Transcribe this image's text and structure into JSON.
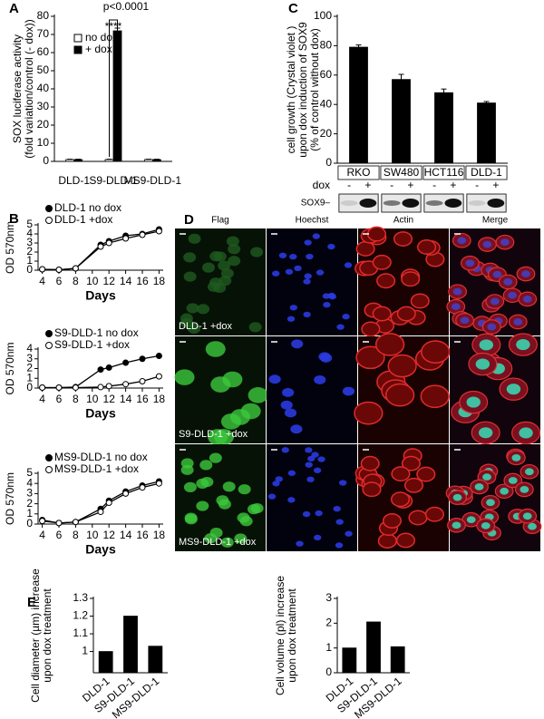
{
  "chart_data": [
    {
      "panel": "A",
      "type": "bar",
      "ylabel": [
        "SOX luciferase activity",
        "(fold variation/control (- dox))"
      ],
      "categories": [
        "DLD-1",
        "S9-DLD-1",
        "MS9-DLD-1"
      ],
      "series": [
        {
          "name": "no dox",
          "color": "#ffffff",
          "values": [
            1,
            1,
            1
          ],
          "errors": [
            0.2,
            0.2,
            0.2
          ]
        },
        {
          "name": "+ dox",
          "color": "#000000",
          "values": [
            1,
            72,
            1
          ],
          "errors": [
            0.2,
            1.5,
            0.2
          ]
        }
      ],
      "ylim": [
        0,
        80
      ],
      "yticks": [
        0,
        10,
        20,
        30,
        40,
        50,
        60,
        70,
        80
      ],
      "legend": "upper left",
      "annotations": [
        "p<0.0001",
        "****"
      ]
    },
    {
      "panel": "C",
      "type": "bar",
      "ylabel": [
        "cell growth (Crystal violet )",
        "upon dox induction of SOX9",
        "(% of control without dox)"
      ],
      "categories": [
        "RKO",
        "SW480",
        "HCT116",
        "DLD-1"
      ],
      "values": [
        79,
        57,
        48,
        41
      ],
      "errors": [
        1.5,
        3.5,
        2.5,
        1
      ],
      "color": "#000000",
      "ylim": [
        0,
        100
      ],
      "yticks": [
        0,
        20,
        40,
        60,
        80,
        100
      ]
    },
    {
      "panel": "B",
      "type": "line",
      "ylabel": [
        "OD 570nm"
      ],
      "xlabel": "Days",
      "x": [
        4,
        6,
        8,
        11,
        12,
        14,
        16,
        18
      ],
      "xlim": [
        3.5,
        18.5
      ],
      "xticks": [
        4,
        6,
        8,
        10,
        12,
        14,
        16,
        18
      ],
      "ylim": [
        0,
        5
      ],
      "yticks": [
        0,
        1,
        2,
        3,
        4,
        5
      ],
      "legend": "upper left",
      "series": [
        {
          "name": "DLD-1 no dox",
          "color": "#000000",
          "marker": "filled",
          "values": [
            0.1,
            0.05,
            0.2,
            2.8,
            3.2,
            3.8,
            4.0,
            4.5
          ]
        },
        {
          "name": "DLD-1 +dox",
          "color": "#000000",
          "marker": "open",
          "values": [
            0.1,
            0.05,
            0.2,
            2.6,
            3.0,
            3.5,
            3.9,
            4.3
          ]
        }
      ]
    },
    {
      "type": "line",
      "ylabel": [
        "OD 570nm"
      ],
      "xlabel": "Days",
      "x": [
        4,
        6,
        8,
        11,
        12,
        14,
        16,
        18
      ],
      "xlim": [
        3.5,
        18.5
      ],
      "xticks": [
        4,
        6,
        8,
        10,
        12,
        14,
        16,
        18
      ],
      "ylim": [
        0,
        4
      ],
      "yticks": [
        0,
        1,
        2,
        3,
        4
      ],
      "legend": "upper left",
      "series": [
        {
          "name": "S9-DLD-1 no dox",
          "color": "#000000",
          "marker": "filled",
          "values": [
            0.05,
            0.05,
            0.1,
            1.9,
            2.1,
            2.6,
            3.0,
            3.3
          ]
        },
        {
          "name": "S9-DLD-1 +dox",
          "color": "#000000",
          "marker": "open",
          "values": [
            0.05,
            0.05,
            0.05,
            0.1,
            0.2,
            0.4,
            0.7,
            1.2
          ]
        }
      ]
    },
    {
      "type": "line",
      "ylabel": [
        "OD 570nm"
      ],
      "xlabel": "Days",
      "x": [
        4,
        6,
        8,
        11,
        12,
        14,
        16,
        18
      ],
      "xlim": [
        3.5,
        18.5
      ],
      "xticks": [
        4,
        6,
        8,
        10,
        12,
        14,
        16,
        18
      ],
      "ylim": [
        0,
        5
      ],
      "yticks": [
        0,
        1,
        2,
        3,
        4,
        5
      ],
      "legend": "upper left",
      "series": [
        {
          "name": "MS9-DLD-1 no dox",
          "color": "#000000",
          "marker": "filled",
          "values": [
            0.4,
            0.1,
            0.2,
            1.5,
            2.3,
            3.2,
            3.8,
            4.2
          ]
        },
        {
          "name": "MS9-DLD-1 +dox",
          "color": "#000000",
          "marker": "open",
          "values": [
            0.3,
            0.1,
            0.2,
            1.2,
            2.1,
            3.0,
            3.6,
            4.0
          ]
        }
      ]
    },
    {
      "panel": "E",
      "type": "bar",
      "ylabel": [
        "Cell diameter (µm) increase",
        "upon dox treatment"
      ],
      "categories": [
        "DLD-1",
        "S9-DLD-1",
        "MS9-DLD-1"
      ],
      "values": [
        1,
        1.2,
        1.03
      ],
      "color": "#000000",
      "ylim": [
        0.88,
        1.3
      ],
      "yticks": [
        1,
        1.1,
        1.2,
        1.3
      ]
    },
    {
      "type": "bar",
      "ylabel": [
        "Cell volume (pl) increase",
        "upon dox treatment"
      ],
      "categories": [
        "DLD-1",
        "S9-DLD-1",
        "MS9-DLD-1"
      ],
      "values": [
        1,
        2.05,
        1.05
      ],
      "color": "#000000",
      "ylim": [
        0,
        3
      ],
      "yticks": [
        0,
        1,
        2,
        3
      ]
    }
  ],
  "western_blot": {
    "label": "SOX9–",
    "treatment": "dox",
    "lanes": [
      "-",
      "+",
      "-",
      "+",
      "-",
      "+",
      "-",
      "+"
    ]
  },
  "microscopy": {
    "panel": "D",
    "columns": [
      "Flag",
      "Hoechst",
      "Actin",
      "Merge"
    ],
    "rows": [
      "DLD-1 +dox",
      "S9-DLD-1 +dox",
      "MS9-DLD-1 +dox"
    ]
  }
}
